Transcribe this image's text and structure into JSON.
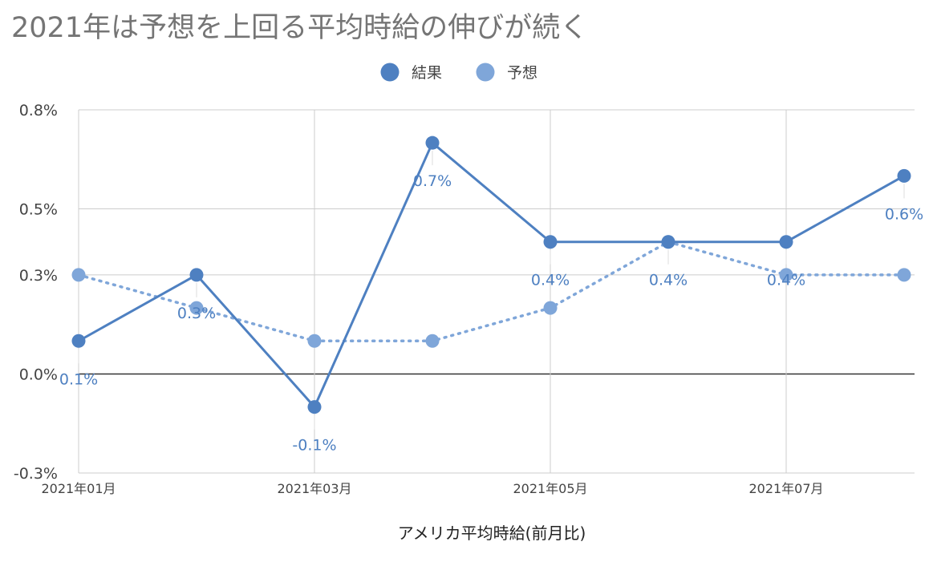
{
  "chart_data": {
    "type": "line",
    "title": "2021年は予想を上回る平均時給の伸びが続く",
    "xlabel": "アメリカ平均時給(前月比)",
    "ylabel": "",
    "x": [
      "2021-01",
      "2021-02",
      "2021-03",
      "2021-04",
      "2021-05",
      "2021-06",
      "2021-07",
      "2021-08"
    ],
    "xtick_labels": [
      "2021年01月",
      "2021年03月",
      "2021年05月",
      "2021年07月"
    ],
    "xtick_index": [
      0,
      2,
      4,
      6
    ],
    "ylim": [
      -0.3,
      0.8
    ],
    "yticks": [
      -0.3,
      0.0,
      0.3,
      0.5,
      0.8
    ],
    "ytick_labels": [
      "-0.3%",
      "0.0%",
      "0.3%",
      "0.5%",
      "0.8%"
    ],
    "grid": true,
    "legend": "top-center",
    "series": [
      {
        "name": "結果",
        "color": "#4e80c1",
        "style": "solid",
        "values": [
          0.1,
          0.3,
          -0.1,
          0.7,
          0.4,
          0.4,
          0.4,
          0.6
        ],
        "labels": [
          "0.1%",
          "0.3%",
          "-0.1%",
          "0.7%",
          "0.4%",
          "",
          "0.4%",
          "0.6%"
        ]
      },
      {
        "name": "予想",
        "color": "#7fa6d9",
        "style": "dotted",
        "values": [
          0.3,
          0.2,
          0.1,
          0.1,
          0.2,
          0.4,
          0.3,
          0.3
        ],
        "labels": [
          "",
          "",
          "",
          "",
          "",
          "0.4%",
          "",
          ""
        ]
      }
    ]
  }
}
